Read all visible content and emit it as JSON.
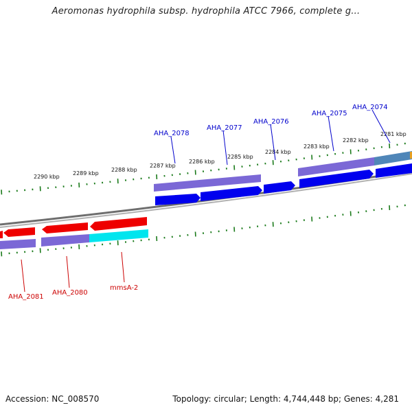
{
  "header": {
    "title": "Aeromonas hydrophila subsp. hydrophila ATCC 7966, complete g..."
  },
  "footer": {
    "accession": "Accession: NC_008570",
    "summary": "Topology: circular; Length: 4,744,448 bp; Genes: 4,281"
  },
  "scale": {
    "tick_labels": [
      "2290 kbp",
      "2289 kbp",
      "2288 kbp",
      "2287 kbp",
      "2286 kbp",
      "2285 kbp",
      "2284 kbp",
      "2283 kbp",
      "2282 kbp",
      "2281 kbp"
    ]
  },
  "genes": {
    "forward": [
      "AHA_2078",
      "AHA_2077",
      "AHA_2076",
      "AHA_2075",
      "AHA_2074"
    ],
    "reverse": [
      "AHA_2081",
      "AHA_2080",
      "mmsA-2"
    ]
  },
  "colors": {
    "forward_gene": "#0000ee",
    "reverse_gene": "#ee0000",
    "cog_band": "#7b68d6",
    "cog_band_cyan": "#00e5ee",
    "cog_band_steel": "#4f86b8",
    "backbone": "#888888",
    "tick": "#1a7a1a",
    "forward_label": "#0000cc",
    "reverse_label": "#cc0000"
  }
}
